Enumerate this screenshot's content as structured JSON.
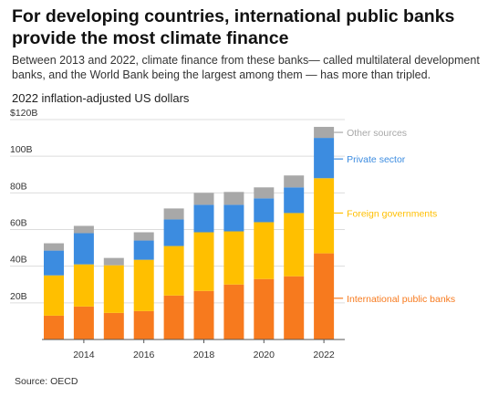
{
  "title": "For developing countries, international public banks provide the most climate finance",
  "subtitle": "Between 2013 and 2022, climate finance from these banks— called multilateral development banks, and the World Bank being the largest among them — has more than tripled.",
  "unit_label": "2022 inflation-adjusted US dollars",
  "source": "Source: OECD",
  "chart_data": {
    "type": "bar",
    "stacked": true,
    "x": [
      2013,
      2014,
      2015,
      2016,
      2017,
      2018,
      2019,
      2020,
      2021,
      2022
    ],
    "x_tick_labels": [
      "2014",
      "2016",
      "2018",
      "2020",
      "2022"
    ],
    "x_tick_values": [
      2014,
      2016,
      2018,
      2020,
      2022
    ],
    "y_tick_labels": [
      "20B",
      "40B",
      "60B",
      "80B",
      "100B",
      "$120B"
    ],
    "y_tick_values": [
      20,
      40,
      60,
      80,
      100,
      120
    ],
    "ylim": [
      0,
      120
    ],
    "grid": true,
    "series": [
      {
        "name": "International public banks",
        "color": "#f77a1e",
        "values": [
          13,
          18,
          14.5,
          15.5,
          24,
          26.5,
          30,
          33,
          34.5,
          47
        ]
      },
      {
        "name": "Foreign governments",
        "color": "#ffbf00",
        "values": [
          22,
          23,
          26,
          28,
          27,
          32,
          29,
          31,
          34.5,
          41
        ]
      },
      {
        "name": "Private sector",
        "color": "#3c8ce0",
        "values": [
          13.5,
          17,
          0,
          10.5,
          14.5,
          15,
          14.5,
          13,
          14,
          22
        ]
      },
      {
        "name": "Other sources",
        "color": "#a8a8a8",
        "values": [
          4,
          4,
          4,
          4.5,
          6,
          6.5,
          7,
          6,
          6.5,
          6
        ]
      }
    ],
    "legend_labels": {
      "Other sources": "Other sources",
      "Private sector": "Private sector",
      "Foreign governments": "Foreign governments",
      "International public banks": "International public banks"
    },
    "legend_placement": "right, beside the last bar"
  }
}
